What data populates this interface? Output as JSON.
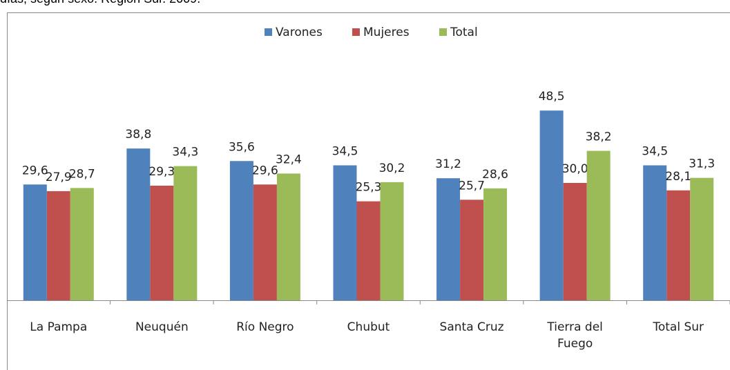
{
  "chart_data": {
    "type": "bar",
    "title": "días, según sexo. Región Sur. 2009.",
    "categories": [
      "La Pampa",
      "Neuquén",
      "Río Negro",
      "Chubut",
      "Santa Cruz",
      "Tierra del Fuego",
      "Total Sur"
    ],
    "series": [
      {
        "name": "Varones",
        "color": "#4f81bd",
        "values": [
          29.6,
          38.8,
          35.6,
          34.5,
          31.2,
          48.5,
          34.5
        ],
        "value_labels": [
          "29,6",
          "38,8",
          "35,6",
          "34,5",
          "31,2",
          "48,5",
          "34,5"
        ]
      },
      {
        "name": "Mujeres",
        "color": "#c0504d",
        "values": [
          27.9,
          29.3,
          29.6,
          25.3,
          25.7,
          30.0,
          28.1
        ],
        "value_labels": [
          "27,9",
          "29,3",
          "29,6",
          "25,3",
          "25,7",
          "30,0",
          "28,1"
        ]
      },
      {
        "name": "Total",
        "color": "#9bbb59",
        "values": [
          28.7,
          34.3,
          32.4,
          30.2,
          28.6,
          38.2,
          31.3
        ],
        "value_labels": [
          "28,7",
          "34,3",
          "32,4",
          "30,2",
          "28,6",
          "38,2",
          "31,3"
        ]
      }
    ],
    "ylim": [
      0,
      60
    ],
    "legend": "top"
  }
}
